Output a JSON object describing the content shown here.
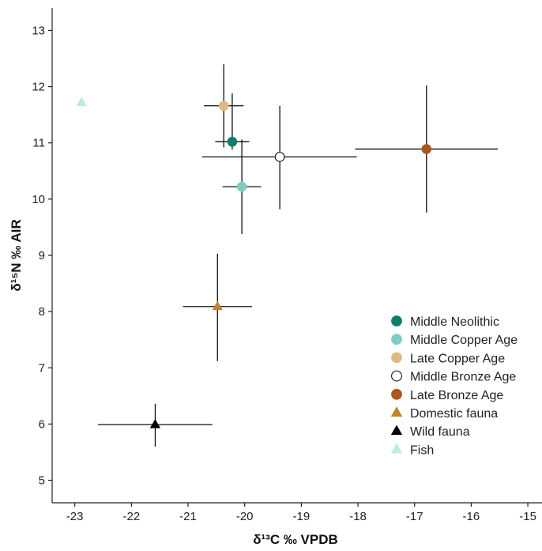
{
  "chart_data": {
    "type": "scatter",
    "title": "",
    "xlabel": "δ¹³C ‰ VPDB",
    "ylabel": "δ¹⁵N ‰ AIR",
    "xlim": [
      -23.4,
      -14.75
    ],
    "ylim": [
      4.6,
      13.4
    ],
    "xticks": [
      "-23",
      "-22",
      "-21",
      "-20",
      "-19",
      "-18",
      "-17",
      "-16",
      "-15"
    ],
    "yticks": [
      "5",
      "6",
      "7",
      "8",
      "9",
      "10",
      "11",
      "12",
      "13"
    ],
    "grid": false,
    "legend_position": "bottom-right",
    "series": [
      {
        "name": "Middle Neolithic",
        "marker": "circle",
        "fill": "#0e7c68",
        "stroke": "#0e7c68",
        "x": -20.22,
        "y": 11.02,
        "xerr_low": -20.52,
        "xerr_high": -19.92,
        "yerr_low": 10.88,
        "yerr_high": 11.88
      },
      {
        "name": "Middle Copper Age",
        "marker": "circle",
        "fill": "#7ecdc3",
        "stroke": "#7ecdc3",
        "x": -20.05,
        "y": 10.22,
        "xerr_low": -20.39,
        "xerr_high": -19.71,
        "yerr_low": 9.38,
        "yerr_high": 11.06
      },
      {
        "name": "Late Copper Age",
        "marker": "circle",
        "fill": "#dcbc82",
        "stroke": "#dcbc82",
        "x": -20.37,
        "y": 11.66,
        "xerr_low": -20.72,
        "xerr_high": -20.02,
        "yerr_low": 10.92,
        "yerr_high": 12.4
      },
      {
        "name": "Middle Bronze Age",
        "marker": "circle-open",
        "fill": "none",
        "stroke": "#222222",
        "x": -19.38,
        "y": 10.75,
        "xerr_low": -20.75,
        "xerr_high": -18.02,
        "yerr_low": 9.82,
        "yerr_high": 11.66
      },
      {
        "name": "Late Bronze Age",
        "marker": "circle",
        "fill": "#a8581c",
        "stroke": "#a8581c",
        "x": -16.79,
        "y": 10.89,
        "xerr_low": -18.05,
        "xerr_high": -15.53,
        "yerr_low": 9.76,
        "yerr_high": 12.02
      },
      {
        "name": "Domestic fauna",
        "marker": "triangle",
        "fill": "#c0842a",
        "stroke": "#c0842a",
        "x": -20.48,
        "y": 8.09,
        "xerr_low": -21.09,
        "xerr_high": -19.87,
        "yerr_low": 7.12,
        "yerr_high": 9.03
      },
      {
        "name": "Wild fauna",
        "marker": "triangle",
        "fill": "#000000",
        "stroke": "#000000",
        "x": -21.58,
        "y": 5.99,
        "xerr_low": -22.59,
        "xerr_high": -20.57,
        "yerr_low": 5.6,
        "yerr_high": 6.36
      },
      {
        "name": "Fish",
        "marker": "triangle",
        "fill": "#bfe9e4",
        "stroke": "#bfe9e4",
        "x": -22.88,
        "y": 11.72
      }
    ]
  }
}
